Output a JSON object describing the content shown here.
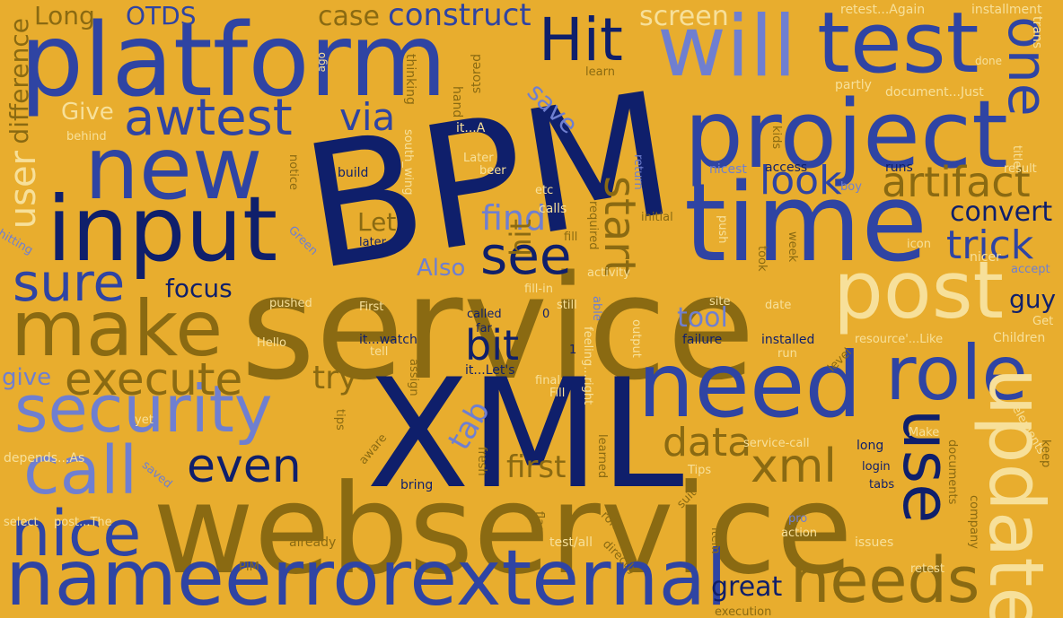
{
  "cloud": {
    "background": "#e8ad2e",
    "palette": {
      "navy": "#0f1f6b",
      "blue": "#2f44a3",
      "lavender": "#6f7fd0",
      "olive": "#8a6a12",
      "cream": "#f7e09a"
    },
    "words": {
      "BPM": "BPM",
      "service": "service",
      "XML": "XML",
      "webservice": "webservice",
      "platform": "platform",
      "time": "time",
      "input": "input",
      "new": "new",
      "need": "need",
      "project": "project",
      "test": "test",
      "will": "will",
      "post": "post",
      "make": "make",
      "security": "security",
      "call": "call",
      "nice": "nice",
      "nameerrorexternal": "nameerrorexternal",
      "needs": "needs",
      "update": "update",
      "use": "use",
      "role": "role",
      "execute": "execute",
      "sure": "sure",
      "awtest": "awtest",
      "Hit": "Hit",
      "one": "one",
      "see": "see",
      "even": "even",
      "xml": "xml",
      "data": "data",
      "bit": "bit",
      "artifact": "artifact",
      "look": "look",
      "trick": "trick",
      "find": "find",
      "start": "start",
      "convert": "convert",
      "user": "user",
      "difference": "difference",
      "Long": "Long",
      "OTDS": "OTDS",
      "case": "case",
      "construct": "construct",
      "screen": "screen",
      "via": "via",
      "save": "save",
      "Give": "Give",
      "Let": "Let",
      "hit": "hit",
      "Also": "Also",
      "focus": "focus",
      "tool": "tool",
      "try": "try",
      "tab": "tab",
      "first": "first",
      "give": "give",
      "guy": "guy",
      "great": "great",
      "retest_again": "retest...Again",
      "installment": "installment",
      "trans": "trans",
      "done": "done",
      "partly": "partly",
      "document_just": "document...Just",
      "ago": "ago",
      "thinking": "thinking",
      "hand": "hand",
      "stored": "stored",
      "learn": "learn",
      "behind": "behind",
      "it_a": "it...A",
      "Later": "Later",
      "build": "build",
      "beer": "beer",
      "notice": "notice",
      "south_wing": "south_wing",
      "etc": "etc",
      "return": "return",
      "nicest": "nicest",
      "access": "access",
      "kids": "kids",
      "title": "title",
      "result": "result",
      "runs": "runs",
      "boy": "boy",
      "calls": "calls",
      "required": "required",
      "initial": "initial",
      "push": "push",
      "icon": "icon",
      "week": "week",
      "took": "took",
      "nicer": "nicer",
      "accept": "accept",
      "hitting": "hitting",
      "Green": "Green",
      "later": "later",
      "fill": "fill",
      "activity": "activity",
      "site": "site",
      "date": "date",
      "fill_in": "fill-in",
      "still": "still",
      "pushed": "pushed",
      "First": "First",
      "called": "called",
      "zero": "0",
      "able": "able",
      "Get": "Get",
      "Hello": "Hello",
      "it_watch": "it...watch",
      "far": "far",
      "tell": "tell",
      "feeling_right": "feeling...right",
      "output": "output",
      "failure": "failure",
      "installed": "installed",
      "run": "run",
      "resource_like": "resource'...Like",
      "Children": "Children",
      "level": "level",
      "one_digit": "1",
      "it_lets": "it...Let's",
      "assign": "assign",
      "final": "final",
      "Fill": "Fill",
      "tips": "tips",
      "yet": "yet",
      "aware": "aware",
      "learned": "learned",
      "documents": "documents",
      "elements": "elements",
      "Make": "Make",
      "keep": "keep",
      "depends_as": "depends...As",
      "saved": "saved",
      "fresh": "fresh",
      "service_call": "service-call",
      "long": "long",
      "login": "login",
      "Tips": "Tips",
      "tabs": "tabs",
      "bring": "bring",
      "suit": "suit",
      "select": "select",
      "post_the": "post...The",
      "flags": "flags",
      "roles": "roles",
      "pro": "pro",
      "action": "action",
      "issues": "issues",
      "company": "company",
      "already": "already",
      "test_all": "test/all",
      "directly": "directly",
      "item": "item",
      "PIM": "PIM",
      "retest": "retest",
      "execution": "execution"
    }
  }
}
